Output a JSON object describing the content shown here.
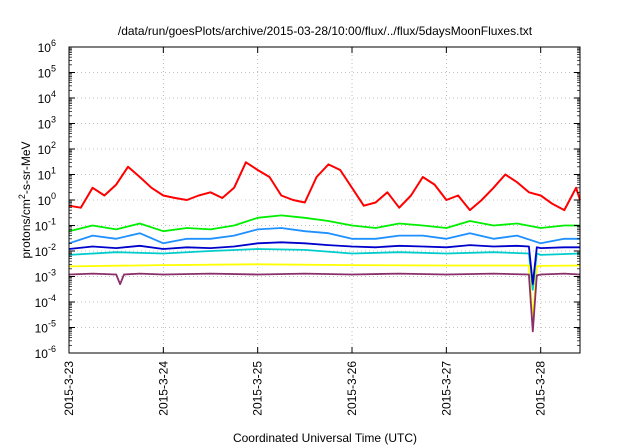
{
  "chart_data": {
    "type": "line",
    "title": "/data/run/goesPlots/archive/2015-03-28/10:00/flux/../flux/5daysMoonFluxes.txt",
    "xlabel": "Coordinated Universal Time (UTC)",
    "ylabel_parts": [
      "protons/cm",
      "2",
      "-s-sr-MeV"
    ],
    "yscale": "log",
    "ylim": [
      1e-06,
      1000000.0
    ],
    "xlim": [
      "2015-03-23T00:00",
      "2015-03-28T10:00"
    ],
    "grid": true,
    "yticks": [
      {
        "base": "10",
        "exp": "-6",
        "value": 1e-06
      },
      {
        "base": "10",
        "exp": "-5",
        "value": 1e-05
      },
      {
        "base": "10",
        "exp": "-4",
        "value": 0.0001
      },
      {
        "base": "10",
        "exp": "-3",
        "value": 0.001
      },
      {
        "base": "10",
        "exp": "-2",
        "value": 0.01
      },
      {
        "base": "10",
        "exp": "-1",
        "value": 0.1
      },
      {
        "base": "10",
        "exp": "0",
        "value": 1
      },
      {
        "base": "10",
        "exp": "1",
        "value": 10
      },
      {
        "base": "10",
        "exp": "2",
        "value": 100
      },
      {
        "base": "10",
        "exp": "3",
        "value": 1000
      },
      {
        "base": "10",
        "exp": "4",
        "value": 10000
      },
      {
        "base": "10",
        "exp": "5",
        "value": 100000
      },
      {
        "base": "10",
        "exp": "6",
        "value": 1000000
      }
    ],
    "xticks": [
      {
        "label": "2015-3-23",
        "value": "2015-03-23T00:00"
      },
      {
        "label": "2015-3-24",
        "value": "2015-03-24T00:00"
      },
      {
        "label": "2015-3-25",
        "value": "2015-03-25T00:00"
      },
      {
        "label": "2015-3-26",
        "value": "2015-03-26T00:00"
      },
      {
        "label": "2015-3-27",
        "value": "2015-03-27T00:00"
      },
      {
        "label": "2015-3-28",
        "value": "2015-03-28T00:00"
      }
    ],
    "series": [
      {
        "color": "#ff0000",
        "x": [
          "2015-03-23T00:00",
          "2015-03-23T03:00",
          "2015-03-23T06:00",
          "2015-03-23T09:00",
          "2015-03-23T12:00",
          "2015-03-23T15:00",
          "2015-03-23T18:00",
          "2015-03-23T21:00",
          "2015-03-24T00:00",
          "2015-03-24T03:00",
          "2015-03-24T06:00",
          "2015-03-24T09:00",
          "2015-03-24T12:00",
          "2015-03-24T15:00",
          "2015-03-24T18:00",
          "2015-03-24T21:00",
          "2015-03-25T00:00",
          "2015-03-25T03:00",
          "2015-03-25T06:00",
          "2015-03-25T09:00",
          "2015-03-25T12:00",
          "2015-03-25T15:00",
          "2015-03-25T18:00",
          "2015-03-25T21:00",
          "2015-03-26T00:00",
          "2015-03-26T03:00",
          "2015-03-26T06:00",
          "2015-03-26T09:00",
          "2015-03-26T12:00",
          "2015-03-26T15:00",
          "2015-03-26T18:00",
          "2015-03-26T21:00",
          "2015-03-27T00:00",
          "2015-03-27T03:00",
          "2015-03-27T06:00",
          "2015-03-27T09:00",
          "2015-03-27T12:00",
          "2015-03-27T15:00",
          "2015-03-27T18:00",
          "2015-03-27T21:00",
          "2015-03-28T00:00",
          "2015-03-28T03:00",
          "2015-03-28T06:00",
          "2015-03-28T09:00",
          "2015-03-28T10:00"
        ],
        "values": [
          0.6,
          0.5,
          3,
          1.5,
          4,
          20,
          8,
          3,
          1.5,
          1.2,
          1,
          1.5,
          2,
          1.2,
          3,
          30,
          15,
          8,
          1.5,
          1,
          0.8,
          8,
          25,
          15,
          3,
          0.6,
          0.8,
          2,
          0.5,
          1.5,
          8,
          4,
          1,
          1.5,
          0.4,
          1,
          3,
          10,
          5,
          2,
          1.5,
          0.7,
          0.4,
          3,
          1
        ]
      },
      {
        "color": "#00ee00",
        "x": [
          "2015-03-23T00:00",
          "2015-03-23T06:00",
          "2015-03-23T12:00",
          "2015-03-23T18:00",
          "2015-03-24T00:00",
          "2015-03-24T06:00",
          "2015-03-24T12:00",
          "2015-03-24T18:00",
          "2015-03-25T00:00",
          "2015-03-25T06:00",
          "2015-03-25T12:00",
          "2015-03-25T18:00",
          "2015-03-26T00:00",
          "2015-03-26T06:00",
          "2015-03-26T12:00",
          "2015-03-26T18:00",
          "2015-03-27T00:00",
          "2015-03-27T06:00",
          "2015-03-27T12:00",
          "2015-03-27T18:00",
          "2015-03-28T00:00",
          "2015-03-28T06:00",
          "2015-03-28T10:00"
        ],
        "values": [
          0.06,
          0.1,
          0.07,
          0.12,
          0.06,
          0.08,
          0.07,
          0.1,
          0.2,
          0.25,
          0.2,
          0.15,
          0.1,
          0.08,
          0.12,
          0.1,
          0.08,
          0.15,
          0.1,
          0.12,
          0.08,
          0.1,
          0.1
        ]
      },
      {
        "color": "#1e90ff",
        "x": [
          "2015-03-23T00:00",
          "2015-03-23T06:00",
          "2015-03-23T12:00",
          "2015-03-23T18:00",
          "2015-03-24T00:00",
          "2015-03-24T06:00",
          "2015-03-24T12:00",
          "2015-03-24T18:00",
          "2015-03-25T00:00",
          "2015-03-25T06:00",
          "2015-03-25T12:00",
          "2015-03-25T18:00",
          "2015-03-26T00:00",
          "2015-03-26T06:00",
          "2015-03-26T12:00",
          "2015-03-26T18:00",
          "2015-03-27T00:00",
          "2015-03-27T06:00",
          "2015-03-27T12:00",
          "2015-03-27T18:00",
          "2015-03-28T00:00",
          "2015-03-28T06:00",
          "2015-03-28T10:00"
        ],
        "values": [
          0.02,
          0.04,
          0.03,
          0.05,
          0.02,
          0.03,
          0.03,
          0.04,
          0.07,
          0.08,
          0.06,
          0.05,
          0.03,
          0.03,
          0.04,
          0.04,
          0.03,
          0.05,
          0.03,
          0.04,
          0.02,
          0.03,
          0.03
        ]
      },
      {
        "color": "#00cccc",
        "x": [
          "2015-03-23T00:00",
          "2015-03-23T12:00",
          "2015-03-24T00:00",
          "2015-03-24T12:00",
          "2015-03-25T00:00",
          "2015-03-25T12:00",
          "2015-03-26T00:00",
          "2015-03-26T12:00",
          "2015-03-27T00:00",
          "2015-03-27T12:00",
          "2015-03-27T21:00",
          "2015-03-27T22:00",
          "2015-03-27T23:00",
          "2015-03-28T00:00",
          "2015-03-28T10:00"
        ],
        "values": [
          0.007,
          0.009,
          0.008,
          0.01,
          0.012,
          0.011,
          0.008,
          0.009,
          0.008,
          0.009,
          0.008,
          0.0003,
          0.008,
          0.007,
          0.008
        ]
      },
      {
        "color": "#0000cc",
        "x": [
          "2015-03-23T00:00",
          "2015-03-23T06:00",
          "2015-03-23T12:00",
          "2015-03-23T18:00",
          "2015-03-24T00:00",
          "2015-03-24T06:00",
          "2015-03-24T12:00",
          "2015-03-24T18:00",
          "2015-03-25T00:00",
          "2015-03-25T06:00",
          "2015-03-25T12:00",
          "2015-03-25T18:00",
          "2015-03-26T00:00",
          "2015-03-26T06:00",
          "2015-03-26T12:00",
          "2015-03-26T18:00",
          "2015-03-27T00:00",
          "2015-03-27T06:00",
          "2015-03-27T12:00",
          "2015-03-27T18:00",
          "2015-03-27T21:00",
          "2015-03-27T22:00",
          "2015-03-27T23:00",
          "2015-03-28T00:00",
          "2015-03-28T06:00",
          "2015-03-28T10:00"
        ],
        "values": [
          0.012,
          0.015,
          0.013,
          0.016,
          0.012,
          0.014,
          0.013,
          0.015,
          0.02,
          0.022,
          0.02,
          0.017,
          0.015,
          0.014,
          0.016,
          0.015,
          0.014,
          0.017,
          0.015,
          0.016,
          0.015,
          0.0005,
          0.014,
          0.013,
          0.014,
          0.014
        ]
      },
      {
        "color": "#ffff00",
        "x": [
          "2015-03-23T00:00",
          "2015-03-24T00:00",
          "2015-03-25T00:00",
          "2015-03-26T00:00",
          "2015-03-27T00:00",
          "2015-03-27T21:00",
          "2015-03-27T22:00",
          "2015-03-27T23:00",
          "2015-03-28T00:00",
          "2015-03-28T10:00"
        ],
        "values": [
          0.0025,
          0.0028,
          0.003,
          0.0028,
          0.0027,
          0.0027,
          2e-05,
          0.0025,
          0.0026,
          0.0027
        ]
      },
      {
        "color": "#8b2f6b",
        "x": [
          "2015-03-23T00:00",
          "2015-03-23T06:00",
          "2015-03-23T12:00",
          "2015-03-23T13:00",
          "2015-03-23T14:00",
          "2015-03-23T18:00",
          "2015-03-24T00:00",
          "2015-03-24T12:00",
          "2015-03-25T00:00",
          "2015-03-25T12:00",
          "2015-03-26T00:00",
          "2015-03-26T12:00",
          "2015-03-27T00:00",
          "2015-03-27T12:00",
          "2015-03-27T21:00",
          "2015-03-27T22:00",
          "2015-03-27T23:00",
          "2015-03-28T00:00",
          "2015-03-28T06:00",
          "2015-03-28T10:00"
        ],
        "values": [
          0.0012,
          0.0013,
          0.0012,
          0.0005,
          0.0012,
          0.0013,
          0.0012,
          0.0013,
          0.0012,
          0.0013,
          0.0012,
          0.0013,
          0.0012,
          0.0013,
          0.0012,
          7e-06,
          0.0011,
          0.0012,
          0.0013,
          0.0012
        ]
      }
    ]
  }
}
